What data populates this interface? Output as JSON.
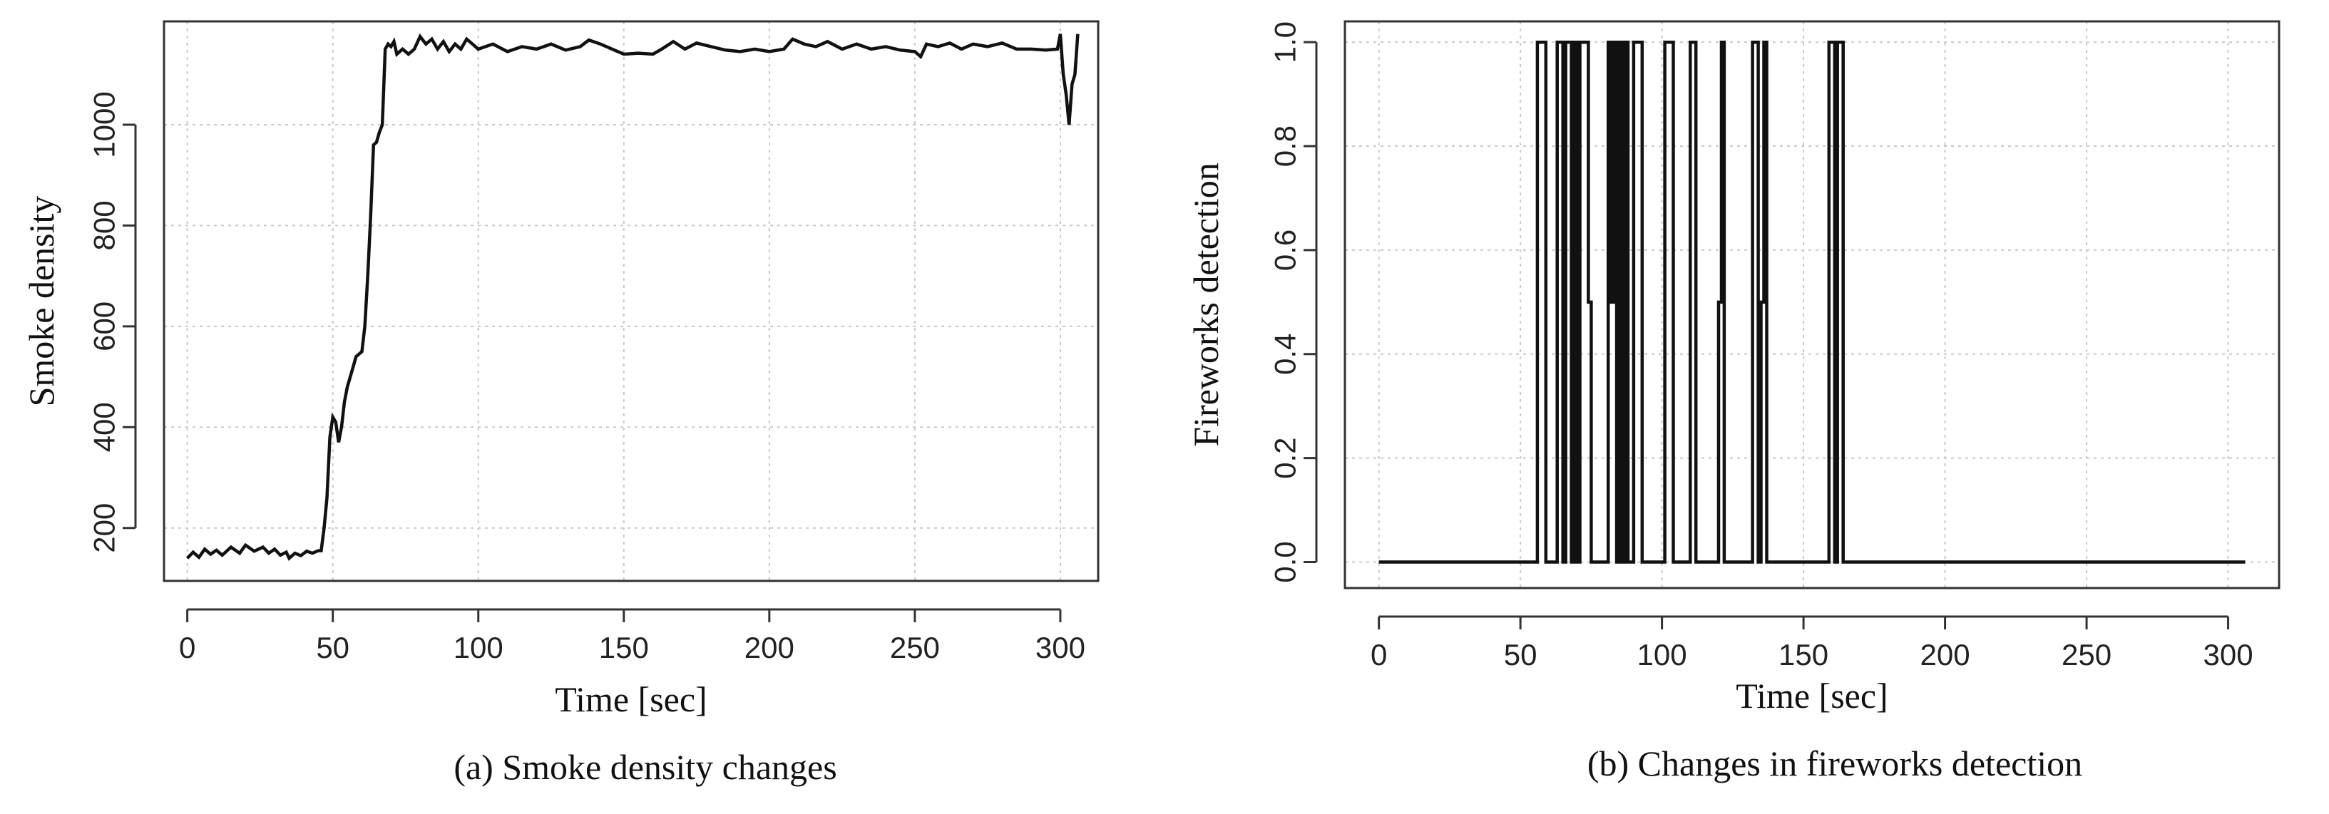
{
  "chart_data": [
    {
      "type": "line",
      "title": "(a) Smoke density changes",
      "xlabel": "Time [sec]",
      "ylabel": "Smoke density",
      "xlim": [
        -8,
        313
      ],
      "ylim": [
        95,
        1205
      ],
      "xticks": [
        0,
        50,
        100,
        150,
        200,
        250,
        300
      ],
      "yticks": [
        200,
        400,
        600,
        800,
        1000
      ],
      "grid": true,
      "series": [
        {
          "color": "#111111",
          "points": [
            [
              0,
              140
            ],
            [
              2,
              152
            ],
            [
              4,
              142
            ],
            [
              6,
              158
            ],
            [
              8,
              148
            ],
            [
              10,
              156
            ],
            [
              12,
              146
            ],
            [
              15,
              162
            ],
            [
              18,
              150
            ],
            [
              20,
              166
            ],
            [
              23,
              154
            ],
            [
              26,
              162
            ],
            [
              28,
              150
            ],
            [
              30,
              158
            ],
            [
              32,
              146
            ],
            [
              34,
              152
            ],
            [
              35,
              140
            ],
            [
              37,
              150
            ],
            [
              39,
              145
            ],
            [
              41,
              154
            ],
            [
              43,
              150
            ],
            [
              45,
              155
            ],
            [
              46,
              155
            ],
            [
              47,
              200
            ],
            [
              48,
              260
            ],
            [
              49,
              380
            ],
            [
              50,
              420
            ],
            [
              51,
              410
            ],
            [
              52,
              370
            ],
            [
              53,
              400
            ],
            [
              54,
              450
            ],
            [
              55,
              480
            ],
            [
              56,
              500
            ],
            [
              57,
              520
            ],
            [
              58,
              540
            ],
            [
              59,
              545
            ],
            [
              60,
              550
            ],
            [
              61,
              600
            ],
            [
              62,
              700
            ],
            [
              63,
              820
            ],
            [
              64,
              960
            ],
            [
              65,
              965
            ],
            [
              66,
              985
            ],
            [
              67,
              1000
            ],
            [
              68,
              1150
            ],
            [
              69,
              1160
            ],
            [
              70,
              1155
            ],
            [
              71,
              1165
            ],
            [
              72,
              1140
            ],
            [
              74,
              1150
            ],
            [
              76,
              1140
            ],
            [
              78,
              1150
            ],
            [
              80,
              1175
            ],
            [
              82,
              1160
            ],
            [
              84,
              1170
            ],
            [
              86,
              1150
            ],
            [
              88,
              1165
            ],
            [
              90,
              1145
            ],
            [
              92,
              1160
            ],
            [
              94,
              1150
            ],
            [
              96,
              1170
            ],
            [
              98,
              1160
            ],
            [
              100,
              1150
            ],
            [
              105,
              1160
            ],
            [
              110,
              1145
            ],
            [
              115,
              1155
            ],
            [
              120,
              1150
            ],
            [
              125,
              1160
            ],
            [
              130,
              1148
            ],
            [
              135,
              1155
            ],
            [
              138,
              1168
            ],
            [
              142,
              1160
            ],
            [
              146,
              1150
            ],
            [
              150,
              1140
            ],
            [
              155,
              1142
            ],
            [
              160,
              1140
            ],
            [
              163,
              1150
            ],
            [
              167,
              1165
            ],
            [
              171,
              1150
            ],
            [
              175,
              1162
            ],
            [
              180,
              1155
            ],
            [
              185,
              1148
            ],
            [
              190,
              1145
            ],
            [
              195,
              1150
            ],
            [
              200,
              1145
            ],
            [
              205,
              1150
            ],
            [
              208,
              1170
            ],
            [
              212,
              1160
            ],
            [
              216,
              1155
            ],
            [
              220,
              1165
            ],
            [
              225,
              1150
            ],
            [
              230,
              1160
            ],
            [
              235,
              1150
            ],
            [
              240,
              1155
            ],
            [
              245,
              1148
            ],
            [
              250,
              1145
            ],
            [
              252,
              1135
            ],
            [
              254,
              1160
            ],
            [
              258,
              1155
            ],
            [
              262,
              1162
            ],
            [
              266,
              1150
            ],
            [
              270,
              1160
            ],
            [
              275,
              1155
            ],
            [
              280,
              1162
            ],
            [
              285,
              1150
            ],
            [
              290,
              1150
            ],
            [
              295,
              1148
            ],
            [
              299,
              1150
            ],
            [
              300,
              1180
            ],
            [
              301,
              1100
            ],
            [
              302,
              1060
            ],
            [
              303,
              1000
            ],
            [
              304,
              1080
            ],
            [
              305,
              1100
            ],
            [
              306,
              1180
            ]
          ]
        }
      ]
    },
    {
      "type": "line",
      "title": "(b) Changes in fireworks detection",
      "xlabel": "Time [sec]",
      "ylabel": "Fireworks detection",
      "xlim": [
        -12,
        318
      ],
      "ylim": [
        -0.05,
        1.04
      ],
      "xticks": [
        0,
        50,
        100,
        150,
        200,
        250,
        300
      ],
      "yticks": [
        0.0,
        0.2,
        0.4,
        0.6,
        0.8,
        1.0
      ],
      "grid": true,
      "series": [
        {
          "color": "#111111",
          "points": [
            [
              0,
              0
            ],
            [
              56,
              0
            ],
            [
              56,
              1
            ],
            [
              59,
              1
            ],
            [
              59,
              0
            ],
            [
              63,
              0
            ],
            [
              63,
              1
            ],
            [
              65,
              1
            ],
            [
              65,
              0
            ],
            [
              66,
              0
            ],
            [
              66,
              1
            ],
            [
              68,
              1
            ],
            [
              68,
              0
            ],
            [
              69,
              0
            ],
            [
              69,
              1
            ],
            [
              70,
              1
            ],
            [
              70,
              0
            ],
            [
              71,
              0
            ],
            [
              71,
              1
            ],
            [
              74,
              1
            ],
            [
              74,
              0.5
            ],
            [
              75,
              0.5
            ],
            [
              75,
              0
            ],
            [
              81,
              0
            ],
            [
              81,
              1
            ],
            [
              82,
              1
            ],
            [
              82,
              0.5
            ],
            [
              83,
              0.5
            ],
            [
              83,
              1
            ],
            [
              84,
              1
            ],
            [
              84,
              0
            ],
            [
              85,
              0
            ],
            [
              85,
              1
            ],
            [
              86,
              1
            ],
            [
              86,
              0
            ],
            [
              87,
              0
            ],
            [
              87,
              1
            ],
            [
              88,
              1
            ],
            [
              88,
              0
            ],
            [
              90,
              0
            ],
            [
              90,
              1
            ],
            [
              93,
              1
            ],
            [
              93,
              0
            ],
            [
              101,
              0
            ],
            [
              101,
              1
            ],
            [
              104,
              1
            ],
            [
              104,
              0
            ],
            [
              110,
              0
            ],
            [
              110,
              1
            ],
            [
              112,
              1
            ],
            [
              112,
              0
            ],
            [
              120,
              0
            ],
            [
              120,
              0.5
            ],
            [
              121,
              0.5
            ],
            [
              121,
              1
            ],
            [
              122,
              1
            ],
            [
              122,
              0
            ],
            [
              132,
              0
            ],
            [
              132,
              1
            ],
            [
              134,
              1
            ],
            [
              134,
              0
            ],
            [
              135,
              0
            ],
            [
              135,
              0.5
            ],
            [
              136,
              0.5
            ],
            [
              136,
              1
            ],
            [
              137,
              1
            ],
            [
              137,
              0
            ],
            [
              159,
              0
            ],
            [
              159,
              1
            ],
            [
              161,
              1
            ],
            [
              161,
              0
            ],
            [
              162,
              0
            ],
            [
              162,
              1
            ],
            [
              164,
              1
            ],
            [
              164,
              0
            ],
            [
              306,
              0
            ]
          ]
        }
      ]
    }
  ]
}
